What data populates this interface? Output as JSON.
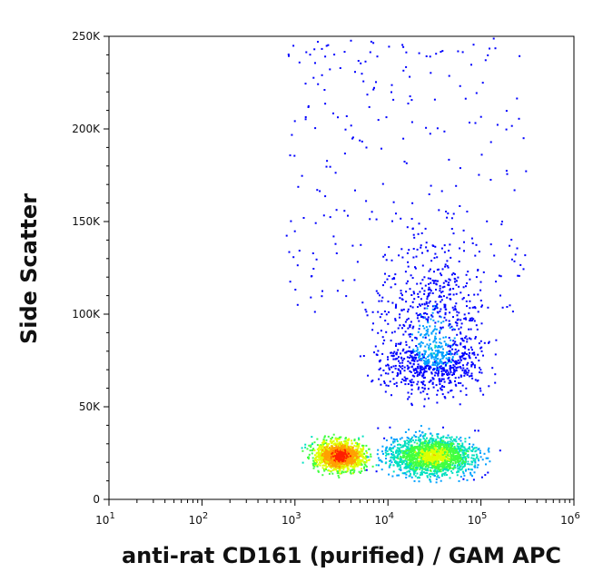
{
  "chart_data": {
    "type": "scatter",
    "title": "",
    "xlabel": "anti-rat CD161 (purified) / GAM APC",
    "ylabel": "Side Scatter",
    "x_scale": "log",
    "xlim": [
      10,
      1000000
    ],
    "ylim": [
      0,
      250000
    ],
    "y_ticks": [
      {
        "value": 0,
        "label": "0"
      },
      {
        "value": 50000,
        "label": "50K"
      },
      {
        "value": 100000,
        "label": "100K"
      },
      {
        "value": 150000,
        "label": "150K"
      },
      {
        "value": 200000,
        "label": "200K"
      },
      {
        "value": 250000,
        "label": "250K"
      }
    ],
    "x_ticks": [
      {
        "value": 10,
        "base": "10",
        "exp": "1"
      },
      {
        "value": 100,
        "base": "10",
        "exp": "2"
      },
      {
        "value": 1000,
        "base": "10",
        "exp": "3"
      },
      {
        "value": 10000,
        "base": "10",
        "exp": "4"
      },
      {
        "value": 100000,
        "base": "10",
        "exp": "5"
      },
      {
        "value": 1000000,
        "base": "10",
        "exp": "6"
      }
    ],
    "grid": false,
    "color_map": "density (blue → cyan → green → yellow → red)",
    "colors": [
      "#0000ff",
      "#00a0ff",
      "#00e0c0",
      "#40ff40",
      "#e0ff00",
      "#ffa000",
      "#ff2000"
    ],
    "populations": [
      {
        "name": "",
        "center_x": 3000,
        "center_y": 24000,
        "peak_density": "high"
      },
      {
        "name": "",
        "center_x": 30000,
        "center_y": 24000,
        "peak_density": "medium"
      },
      {
        "name": "",
        "center_x": 30000,
        "center_y": 80000,
        "peak_density": "low"
      }
    ]
  }
}
